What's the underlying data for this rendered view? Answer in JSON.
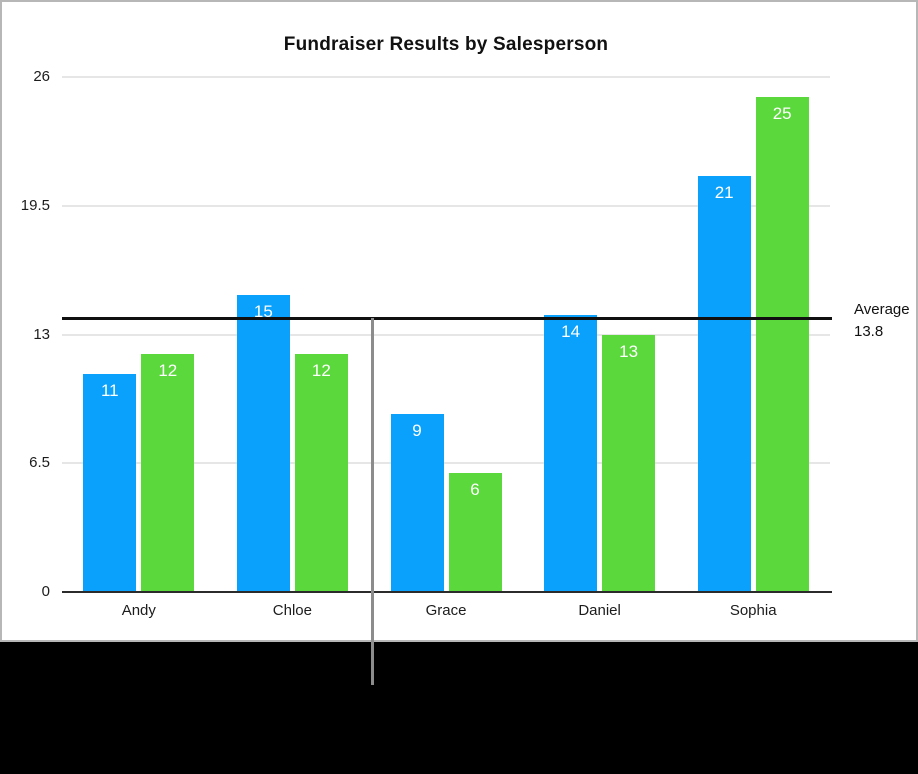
{
  "chart_data": {
    "type": "bar",
    "title": "Fundraiser Results by Salesperson",
    "categories": [
      "Andy",
      "Chloe",
      "Grace",
      "Daniel",
      "Sophia"
    ],
    "series": [
      {
        "name": "blue-series",
        "color": "#0aa1fd",
        "values": [
          11,
          15,
          9,
          14,
          21
        ]
      },
      {
        "name": "green-series",
        "color": "#5bd83c",
        "values": [
          12,
          12,
          6,
          13,
          25
        ]
      }
    ],
    "bar_labels": "inside-top",
    "bar_label_color": "#ffffff",
    "ylim": [
      0,
      26
    ],
    "y_ticks": [
      0,
      6.5,
      13,
      19.5,
      26
    ],
    "y_tick_labels": [
      "0",
      "6.5",
      "13",
      "19.5",
      "26"
    ],
    "xlabel": "",
    "ylabel": "",
    "grid": true,
    "legend_position": "none",
    "reference_line": {
      "value": 13.8,
      "label": "Average",
      "value_label": "13.8",
      "color": "#101010"
    }
  },
  "annotations": {
    "callout_line_color": "#8c8c8c",
    "footer_background": "#000000"
  }
}
